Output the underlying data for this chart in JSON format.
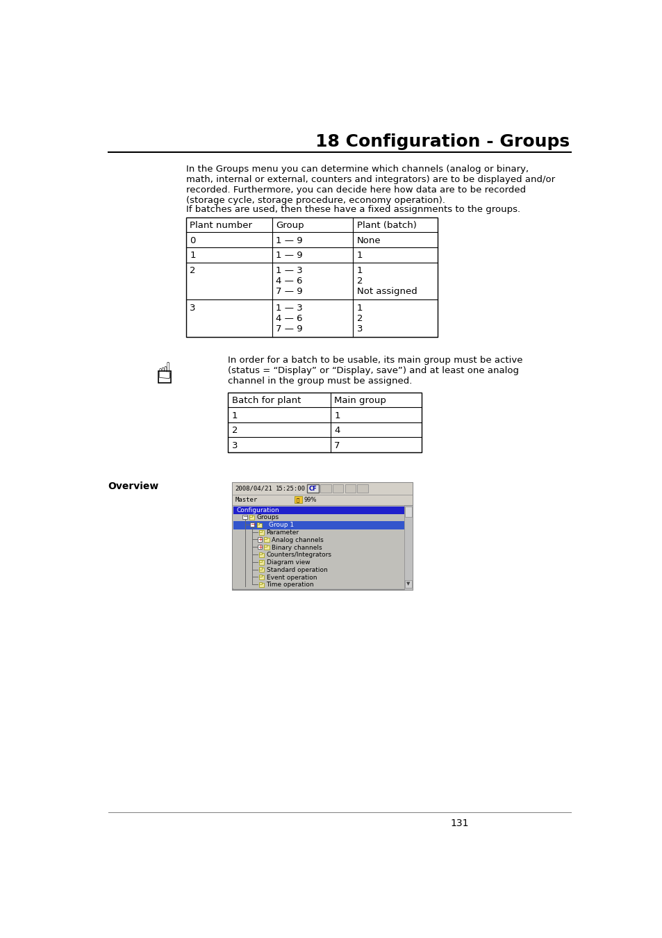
{
  "title": "18 Configuration - Groups",
  "body_text_1": "In the Groups menu you can determine which channels (analog or binary,\nmath, internal or external, counters and integrators) are to be displayed and/or\nrecorded. Furthermore, you can decide here how data are to be recorded\n(storage cycle, storage procedure, economy operation).",
  "body_text_2": "If batches are used, then these have a fixed assignments to the groups.",
  "table1_headers": [
    "Plant number",
    "Group",
    "Plant (batch)"
  ],
  "table1_rows": [
    [
      "0",
      "1 — 9",
      "None"
    ],
    [
      "1",
      "1 — 9",
      "1"
    ],
    [
      "2",
      "1 — 3\n4 — 6\n7 — 9",
      "1\n2\nNot assigned"
    ],
    [
      "3",
      "1 — 3\n4 — 6\n7 — 9",
      "1\n2\n3"
    ]
  ],
  "note_text": "In order for a batch to be usable, its main group must be active\n(status = “Display” or “Display, save”) and at least one analog\nchannel in the group must be assigned.",
  "table2_headers": [
    "Batch for plant",
    "Main group"
  ],
  "table2_rows": [
    [
      "1",
      "1"
    ],
    [
      "2",
      "4"
    ],
    [
      "3",
      "7"
    ]
  ],
  "overview_label": "Overview",
  "page_number": "131",
  "bg_color": "#ffffff",
  "text_color": "#000000",
  "screen_date": "2008/04/21",
  "screen_time": "15:25:00",
  "screen_master": "Master",
  "screen_pct": "99%",
  "tree_items": [
    {
      "label": "Configuration",
      "type": "header_blue",
      "indent": 0
    },
    {
      "label": "Groups",
      "type": "folder_minus",
      "indent": 1,
      "icon_color": "#f0e8a0"
    },
    {
      "label": "Group 1",
      "type": "folder_highlight",
      "indent": 2,
      "icon_color": "#f0e8a0"
    },
    {
      "label": "Parameter",
      "type": "folder",
      "indent": 3,
      "icon_color": "#f0e8a0"
    },
    {
      "label": "Analog channels",
      "type": "folder_plus",
      "indent": 3,
      "icon_color": "#f0e8a0"
    },
    {
      "label": "Binary channels",
      "type": "folder_plus_red",
      "indent": 3,
      "icon_color": "#f0e8a0"
    },
    {
      "label": "Counters/Integrators",
      "type": "folder",
      "indent": 3,
      "icon_color": "#f0e8a0"
    },
    {
      "label": "Diagram view",
      "type": "folder",
      "indent": 3,
      "icon_color": "#f0e8a0"
    },
    {
      "label": "Standard operation",
      "type": "folder",
      "indent": 3,
      "icon_color": "#f0e8a0"
    },
    {
      "label": "Event operation",
      "type": "folder",
      "indent": 3,
      "icon_color": "#f0e8a0"
    },
    {
      "label": "Time operation",
      "type": "folder",
      "indent": 3,
      "icon_color": "#f0e8a0"
    }
  ]
}
